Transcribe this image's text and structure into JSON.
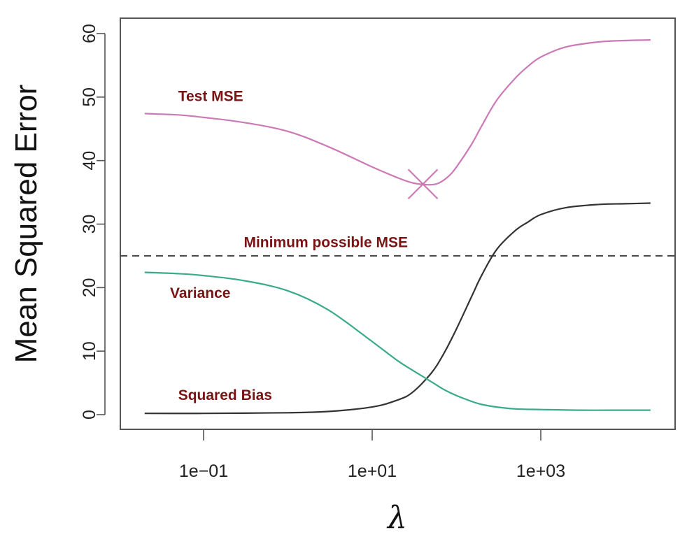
{
  "chart_data": {
    "type": "line",
    "xlabel": "λ",
    "ylabel": "Mean Squared Error",
    "x_scale": "log10",
    "xlim": [
      0.01,
      50000
    ],
    "ylim": [
      0,
      60
    ],
    "x_ticks": [
      {
        "value": 0.1,
        "label": "1e−01"
      },
      {
        "value": 10,
        "label": "1e+01"
      },
      {
        "value": 1000,
        "label": "1e+03"
      }
    ],
    "y_ticks": [
      {
        "value": 0,
        "label": "0"
      },
      {
        "value": 10,
        "label": "10"
      },
      {
        "value": 20,
        "label": "20"
      },
      {
        "value": 30,
        "label": "30"
      },
      {
        "value": 40,
        "label": "40"
      },
      {
        "value": 50,
        "label": "50"
      },
      {
        "value": 60,
        "label": "60"
      }
    ],
    "grid": false,
    "legend": "none",
    "series": [
      {
        "name": "Test MSE",
        "color": "#cc79b6",
        "x": [
          0.02,
          0.05,
          0.1,
          0.3,
          1,
          3,
          10,
          20,
          30,
          45,
          60,
          80,
          100,
          150,
          200,
          300,
          500,
          700,
          1000,
          2000,
          5000,
          10000,
          20000
        ],
        "y": [
          47.4,
          47.2,
          46.8,
          46.0,
          44.6,
          42.2,
          39.0,
          37.3,
          36.5,
          36.2,
          36.4,
          37.5,
          39.0,
          42.5,
          45.5,
          49.5,
          53.0,
          54.8,
          56.3,
          57.9,
          58.7,
          58.9,
          59.0
        ]
      },
      {
        "name": "Squared Bias",
        "color": "#333333",
        "x": [
          0.02,
          0.1,
          1,
          3,
          10,
          20,
          30,
          50,
          70,
          100,
          150,
          200,
          300,
          500,
          700,
          1000,
          2000,
          5000,
          10000,
          20000
        ],
        "y": [
          0.2,
          0.2,
          0.3,
          0.5,
          1.2,
          2.3,
          3.5,
          6.5,
          9.5,
          13.5,
          18.5,
          22.0,
          26.0,
          29.0,
          30.3,
          31.5,
          32.6,
          33.1,
          33.2,
          33.3
        ]
      },
      {
        "name": "Variance",
        "color": "#3aaa8a",
        "x": [
          0.02,
          0.05,
          0.1,
          0.3,
          1,
          3,
          10,
          20,
          30,
          50,
          70,
          100,
          150,
          200,
          300,
          500,
          1000,
          3000,
          10000,
          20000
        ],
        "y": [
          22.4,
          22.2,
          21.9,
          21.1,
          19.5,
          16.5,
          11.5,
          8.5,
          7.0,
          5.2,
          4.0,
          3.0,
          2.1,
          1.6,
          1.2,
          0.9,
          0.8,
          0.7,
          0.7,
          0.7
        ]
      }
    ],
    "reference_lines": [
      {
        "name": "Minimum possible MSE",
        "y": 25,
        "style": "dashed",
        "color": "#444444"
      }
    ],
    "markers": [
      {
        "name": "Test MSE minimum",
        "x": 40,
        "y": 36.3,
        "shape": "cross",
        "color": "#cc79b6"
      }
    ],
    "annotations": [
      {
        "text": "Test MSE",
        "x": 0.05,
        "y": 50,
        "color": "#7a1414"
      },
      {
        "text": "Minimum possible MSE",
        "x": 0.3,
        "y": 27,
        "color": "#7a1414"
      },
      {
        "text": "Variance",
        "x": 0.04,
        "y": 19,
        "color": "#7a1414"
      },
      {
        "text": "Squared Bias",
        "x": 0.05,
        "y": 2.9,
        "color": "#7a1414"
      }
    ]
  }
}
